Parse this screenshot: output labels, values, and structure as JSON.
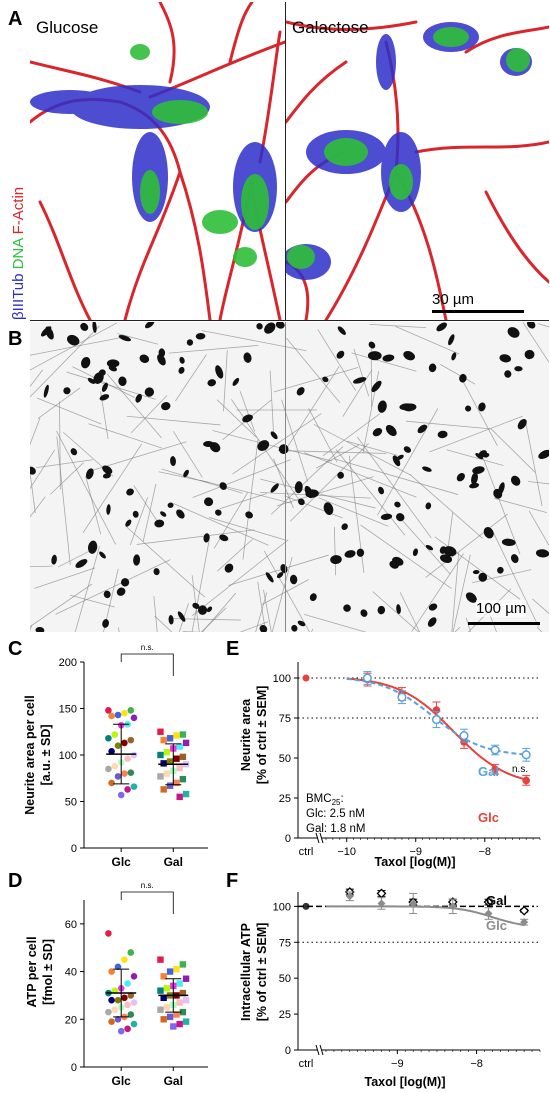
{
  "panels": {
    "A": {
      "letter": "A",
      "left_condition": "Glucose",
      "right_condition": "Galactose",
      "stain_blue": "βIIITub",
      "stain_green": "DNA",
      "stain_red": "F-Actin",
      "scale_bar": "30 µm"
    },
    "B": {
      "letter": "B",
      "scale_bar": "100 µm"
    },
    "C": {
      "letter": "C",
      "ylabel_line1": "Neurite area per cell",
      "ylabel_line2": "[a.u. ± SD]",
      "categories": [
        "Glc",
        "Gal"
      ],
      "significance": "n.s."
    },
    "D": {
      "letter": "D",
      "ylabel_line1": "ATP per cell",
      "ylabel_line2": "[fmol ± SD]",
      "categories": [
        "Glc",
        "Gal"
      ],
      "significance": "n.s."
    },
    "E": {
      "letter": "E",
      "ylabel_line1": "Neurite area",
      "ylabel_line2": "[% of ctrl ± SEM]",
      "xlabel": "Taxol [log(M)]",
      "ctrl_label": "ctrl",
      "series_labels": [
        "Glc",
        "Gal"
      ],
      "significance": "n.s.",
      "bmc_title": "BMC",
      "bmc_sub": "25",
      "bmc_title_suffix": ":",
      "bmc_glc": "Glc: 2.5 nM",
      "bmc_gal": "Gal: 1.8 nM"
    },
    "F": {
      "letter": "F",
      "ylabel_line1": "Intracellular ATP",
      "ylabel_line2": "[% of ctrl ± SEM]",
      "xlabel": "Taxol [log(M)]",
      "ctrl_label": "ctrl",
      "series_labels": [
        "Gal",
        "Glc"
      ]
    }
  },
  "colors": {
    "glc": "#e8413b",
    "gal": "#5aa1dc",
    "f_glc": "#8c8c8c",
    "f_gal": "#000000"
  },
  "chart_data": [
    {
      "panel": "C",
      "type": "scatter",
      "categories": [
        "Glc",
        "Gal"
      ],
      "ylim": [
        0,
        200
      ],
      "yticks": [
        0,
        50,
        100,
        150,
        200
      ],
      "series": [
        {
          "name": "Glc",
          "mean": 101,
          "sd": 32,
          "values": [
            148,
            148,
            145,
            143,
            142,
            140,
            133,
            132,
            122,
            118,
            116,
            113,
            110,
            104,
            100,
            96,
            92,
            88,
            85,
            81,
            80,
            77,
            70,
            66,
            63,
            57
          ]
        },
        {
          "name": "Gal",
          "mean": 90,
          "sd": 22,
          "values": [
            125,
            122,
            121,
            118,
            116,
            113,
            109,
            107,
            103,
            100,
            98,
            96,
            93,
            91,
            90,
            86,
            83,
            80,
            77,
            74,
            70,
            67,
            63,
            58,
            55
          ]
        }
      ]
    },
    {
      "panel": "D",
      "type": "scatter",
      "categories": [
        "Glc",
        "Gal"
      ],
      "ylim": [
        0,
        70
      ],
      "yticks": [
        0,
        20,
        40,
        60
      ],
      "series": [
        {
          "name": "Glc",
          "mean": 31,
          "sd": 10,
          "values": [
            56,
            48,
            45,
            42,
            40,
            38,
            35,
            33,
            32,
            31,
            30,
            29,
            28,
            28,
            27,
            26,
            25,
            24,
            23,
            22,
            21,
            20,
            19,
            18,
            16,
            15
          ]
        },
        {
          "name": "Gal",
          "mean": 30,
          "sd": 7,
          "values": [
            45,
            43,
            41,
            40,
            38,
            37,
            35,
            34,
            33,
            32,
            31,
            30,
            30,
            29,
            28,
            27,
            26,
            25,
            24,
            23,
            22,
            21,
            20,
            19,
            18,
            17
          ]
        }
      ]
    },
    {
      "panel": "E",
      "type": "line",
      "xlim": [
        -10.3,
        -7.2
      ],
      "ylim": [
        0,
        110
      ],
      "yticks": [
        0,
        25,
        50,
        75,
        100
      ],
      "xticks": [
        -10,
        -9,
        -8
      ],
      "reference_lines": [
        100,
        75
      ],
      "ctrl": 100,
      "series": [
        {
          "name": "Glc",
          "x": [
            -9.7,
            -9.2,
            -8.7,
            -8.3,
            -7.85,
            -7.4
          ],
          "y": [
            99,
            90,
            80,
            60,
            43,
            36
          ],
          "err": [
            4,
            4,
            5,
            4,
            3,
            3
          ],
          "fit": {
            "top": 101,
            "bottom": 32,
            "log_ec50": -8.45,
            "hill": 1.1
          }
        },
        {
          "name": "Gal",
          "x": [
            -9.7,
            -9.2,
            -8.7,
            -8.3,
            -7.85,
            -7.4
          ],
          "y": [
            100,
            88,
            74,
            64,
            55,
            52
          ],
          "err": [
            4,
            4,
            5,
            4,
            3,
            4
          ],
          "fit": {
            "top": 101,
            "bottom": 51,
            "log_ec50": -8.75,
            "hill": 1.2
          }
        }
      ]
    },
    {
      "panel": "F",
      "type": "line",
      "xlim": [
        -9.9,
        -7.2
      ],
      "ylim": [
        0,
        110
      ],
      "yticks": [
        0,
        25,
        50,
        75,
        100
      ],
      "xticks": [
        -9,
        -8
      ],
      "reference_lines": [
        100,
        75
      ],
      "ctrl": 100,
      "series": [
        {
          "name": "Gal",
          "x": [
            -9.6,
            -9.2,
            -8.8,
            -8.3,
            -7.85,
            -7.4
          ],
          "y": [
            110,
            109,
            103,
            103,
            103,
            97
          ],
          "err": [
            2,
            2,
            2,
            2,
            2,
            1
          ]
        },
        {
          "name": "Glc",
          "x": [
            -9.6,
            -9.2,
            -8.8,
            -8.3,
            -7.85,
            -7.4
          ],
          "y": [
            107,
            102,
            102,
            100,
            95,
            89
          ],
          "err": [
            3,
            4,
            7,
            5,
            4,
            2
          ],
          "fit": {
            "top": 100,
            "bottom": 85,
            "log_ec50": -7.8,
            "hill": 2.0
          }
        }
      ]
    }
  ]
}
